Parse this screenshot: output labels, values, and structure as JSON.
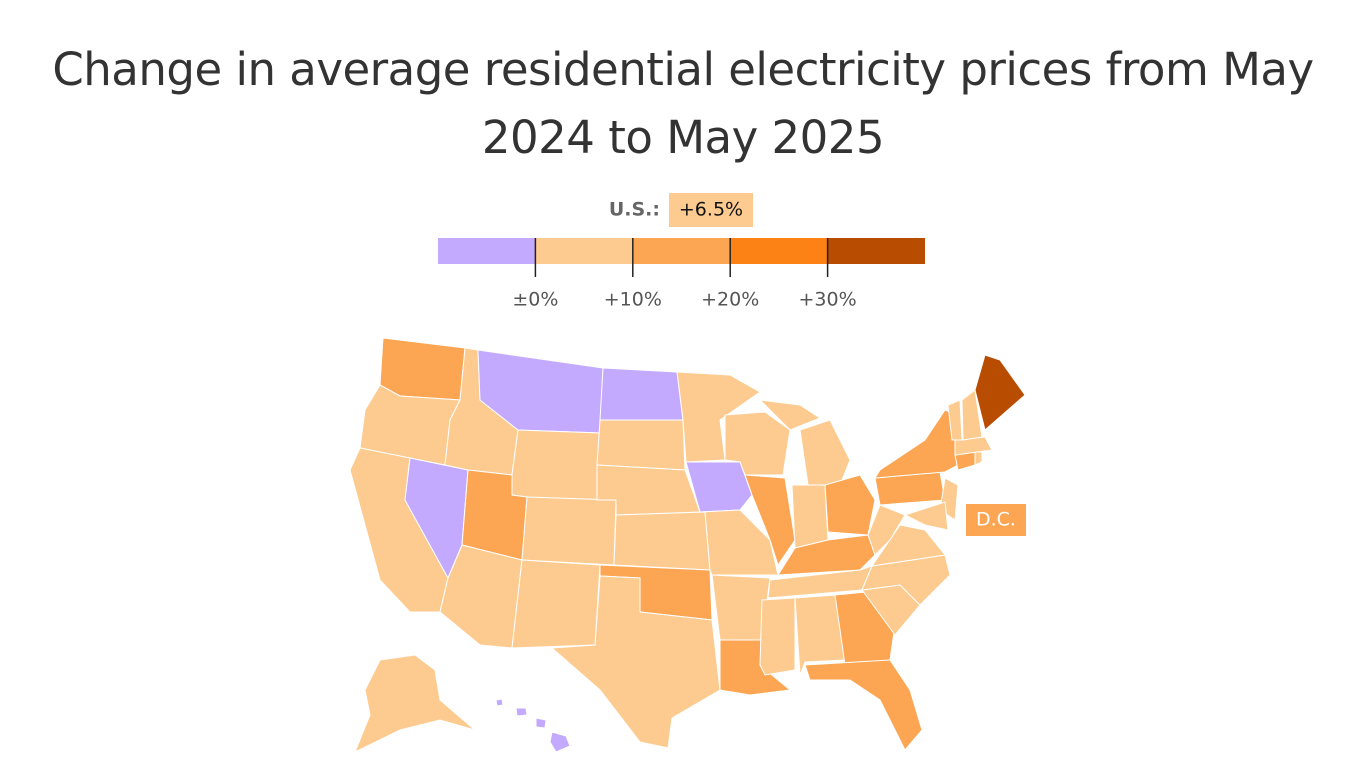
{
  "chart_data": {
    "type": "choropleth",
    "title": "Change in average residential electricity prices from May 2024 to May 2025",
    "us_label": "U.S.:",
    "us_value": 6.5,
    "us_value_label": "+6.5%",
    "legend": {
      "xlim": [
        -10,
        40
      ],
      "xticks": [
        {
          "value": 0,
          "label": "±0%"
        },
        {
          "value": 10,
          "label": "+10%"
        },
        {
          "value": 20,
          "label": "+20%"
        },
        {
          "value": 30,
          "label": "+30%"
        }
      ],
      "colors": [
        "#c4aaff",
        "#fdcb8f",
        "#fca552",
        "#fd8216",
        "#b84c00"
      ]
    },
    "values": [
      15,
      5,
      5,
      -3,
      5,
      -3,
      5,
      15,
      5,
      5,
      5,
      -3,
      5,
      5,
      5,
      15,
      5,
      5,
      -3,
      5,
      5,
      15,
      5,
      15,
      5,
      5,
      5,
      15,
      15,
      5,
      5,
      5,
      15,
      15,
      5,
      5,
      5,
      5,
      15,
      15,
      5,
      15,
      5,
      5,
      5,
      5,
      35,
      5,
      5,
      -3,
      -3,
      -3,
      -3
    ],
    "dc_label": "D.C.",
    "dc_value": 15
  }
}
